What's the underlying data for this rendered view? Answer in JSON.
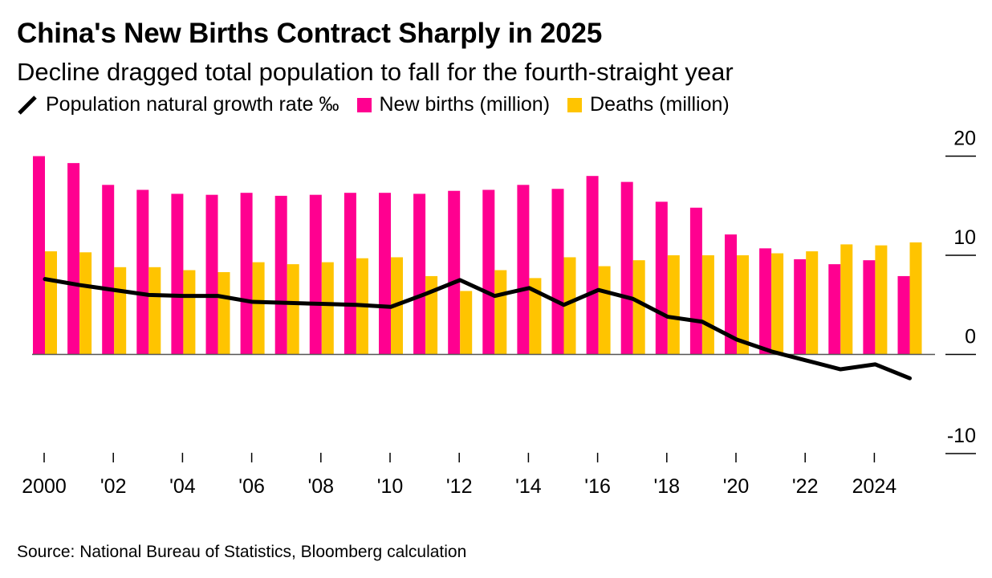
{
  "title": "China's New Births Contract Sharply in 2025",
  "subtitle": "Decline dragged total population to fall for the fourth-straight year",
  "legend": [
    {
      "key": "growth",
      "label": "Population natural growth rate ‰",
      "icon": "line-icon",
      "color": "#000000"
    },
    {
      "key": "births",
      "label": "New births (million)",
      "icon": "square-icon",
      "color": "#FF0090"
    },
    {
      "key": "deaths",
      "label": "Deaths (million)",
      "icon": "square-icon",
      "color": "#FFC400"
    }
  ],
  "source": "Source: National Bureau of Statistics, Bloomberg calculation",
  "chart_data": {
    "type": "bar",
    "title": "China's New Births Contract Sharply in 2025",
    "subtitle": "Decline dragged total population to fall for the fourth-straight year",
    "xlabel": "",
    "ylabel": "",
    "x": [
      2000,
      2001,
      2002,
      2003,
      2004,
      2005,
      2006,
      2007,
      2008,
      2009,
      2010,
      2011,
      2012,
      2013,
      2014,
      2015,
      2016,
      2017,
      2018,
      2019,
      2020,
      2021,
      2022,
      2023,
      2024,
      2025
    ],
    "x_tick_labels": [
      {
        "x": 2000,
        "label": "2000"
      },
      {
        "x": 2002,
        "label": "'02"
      },
      {
        "x": 2004,
        "label": "'04"
      },
      {
        "x": 2006,
        "label": "'06"
      },
      {
        "x": 2008,
        "label": "'08"
      },
      {
        "x": 2010,
        "label": "'10"
      },
      {
        "x": 2012,
        "label": "'12"
      },
      {
        "x": 2014,
        "label": "'14"
      },
      {
        "x": 2016,
        "label": "'16"
      },
      {
        "x": 2018,
        "label": "'18"
      },
      {
        "x": 2020,
        "label": "'20"
      },
      {
        "x": 2022,
        "label": "'22"
      },
      {
        "x": 2024,
        "label": "2024"
      }
    ],
    "y_ticks": [
      20,
      10,
      0,
      -10
    ],
    "y_tick_labels": [
      "20",
      "10",
      "0",
      "-10"
    ],
    "ylim": [
      -10,
      20
    ],
    "y_axis_side": "right",
    "grid": false,
    "legend_position": "top-left",
    "series": [
      {
        "name": "New births (million)",
        "type": "bar",
        "color": "#FF0090",
        "values": [
          20.0,
          19.3,
          17.1,
          16.6,
          16.2,
          16.1,
          16.3,
          16.0,
          16.1,
          16.3,
          16.3,
          16.2,
          16.5,
          16.6,
          17.1,
          16.7,
          18.0,
          17.4,
          15.4,
          14.8,
          12.1,
          10.7,
          9.6,
          9.1,
          9.5,
          7.9
        ]
      },
      {
        "name": "Deaths (million)",
        "type": "bar",
        "color": "#FFC400",
        "values": [
          10.4,
          10.3,
          8.8,
          8.8,
          8.5,
          8.3,
          9.3,
          9.1,
          9.3,
          9.7,
          9.8,
          7.9,
          6.4,
          8.5,
          7.7,
          9.8,
          8.9,
          9.5,
          10.0,
          10.0,
          10.0,
          10.2,
          10.4,
          11.1,
          11.0,
          11.3
        ]
      },
      {
        "name": "Population natural growth rate ‰",
        "type": "line",
        "color": "#000000",
        "values": [
          7.6,
          7.0,
          6.5,
          6.0,
          5.9,
          5.9,
          5.3,
          5.2,
          5.1,
          5.0,
          4.8,
          6.1,
          7.5,
          5.9,
          6.7,
          5.0,
          6.5,
          5.6,
          3.8,
          3.3,
          1.5,
          0.3,
          -0.6,
          -1.5,
          -1.0,
          -2.4
        ]
      }
    ]
  }
}
